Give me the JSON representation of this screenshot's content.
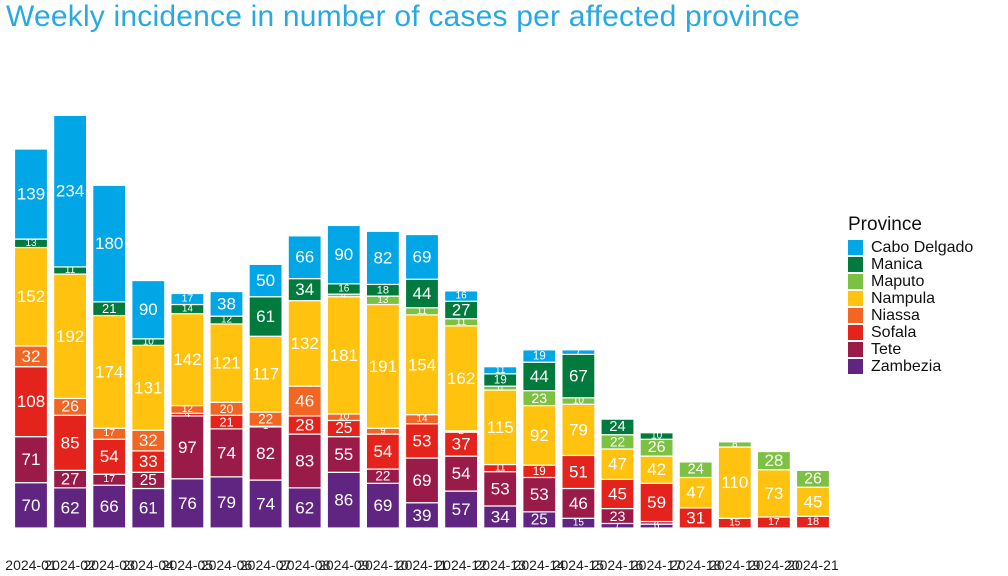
{
  "title": "Weekly incidence in number of cases per affected province",
  "legend": {
    "title": "Province",
    "entries": [
      {
        "label": "Cabo Delgado",
        "color": "#00a6e6"
      },
      {
        "label": "Manica",
        "color": "#007a3d"
      },
      {
        "label": "Maputo",
        "color": "#7dc143"
      },
      {
        "label": "Nampula",
        "color": "#ffc20e"
      },
      {
        "label": "Niassa",
        "color": "#f26522"
      },
      {
        "label": "Sofala",
        "color": "#e3231c"
      },
      {
        "label": "Tete",
        "color": "#9b1b48"
      },
      {
        "label": "Zambezia",
        "color": "#5f2580"
      }
    ]
  },
  "chart_data": {
    "type": "bar",
    "stacked": true,
    "categories": [
      "2024-01",
      "2024-02",
      "2024-03",
      "2024-04",
      "2024-05",
      "2024-06",
      "2024-07",
      "2024-08",
      "2024-09",
      "2024-10",
      "2024-11",
      "2024-12",
      "2024-13",
      "2024-14",
      "2024-15",
      "2024-16",
      "2024-17",
      "2024-18",
      "2024-19",
      "2024-20",
      "2024-21"
    ],
    "series": [
      {
        "name": "Zambezia",
        "values": [
          70,
          62,
          66,
          61,
          76,
          79,
          74,
          62,
          86,
          69,
          39,
          57,
          34,
          25,
          15,
          7,
          6,
          0,
          0,
          0,
          0
        ]
      },
      {
        "name": "Tete",
        "values": [
          71,
          27,
          17,
          25,
          97,
          74,
          82,
          83,
          55,
          22,
          69,
          54,
          53,
          53,
          46,
          23,
          4,
          0,
          0,
          0,
          0
        ]
      },
      {
        "name": "Sofala",
        "values": [
          108,
          85,
          54,
          33,
          4,
          21,
          1,
          28,
          25,
          54,
          53,
          37,
          11,
          19,
          51,
          45,
          59,
          31,
          15,
          17,
          18
        ]
      },
      {
        "name": "Niassa",
        "values": [
          32,
          26,
          17,
          32,
          12,
          20,
          22,
          46,
          10,
          9,
          14,
          2,
          0,
          0,
          0,
          0,
          0,
          0,
          0,
          0,
          0
        ]
      },
      {
        "name": "Nampula",
        "values": [
          152,
          192,
          174,
          131,
          142,
          121,
          117,
          132,
          181,
          191,
          154,
          162,
          115,
          92,
          79,
          47,
          42,
          47,
          110,
          73,
          45
        ]
      },
      {
        "name": "Maputo",
        "values": [
          0,
          0,
          0,
          0,
          0,
          0,
          0,
          0,
          4,
          13,
          11,
          11,
          6,
          23,
          10,
          22,
          26,
          24,
          8,
          28,
          26
        ]
      },
      {
        "name": "Manica",
        "values": [
          13,
          11,
          21,
          10,
          14,
          12,
          61,
          34,
          16,
          18,
          44,
          27,
          19,
          44,
          67,
          24,
          10,
          0,
          0,
          0,
          0
        ]
      },
      {
        "name": "Cabo Delgado",
        "values": [
          139,
          234,
          180,
          90,
          17,
          38,
          50,
          66,
          90,
          82,
          69,
          16,
          11,
          19,
          7,
          0,
          0,
          0,
          0,
          0,
          0
        ]
      }
    ]
  }
}
